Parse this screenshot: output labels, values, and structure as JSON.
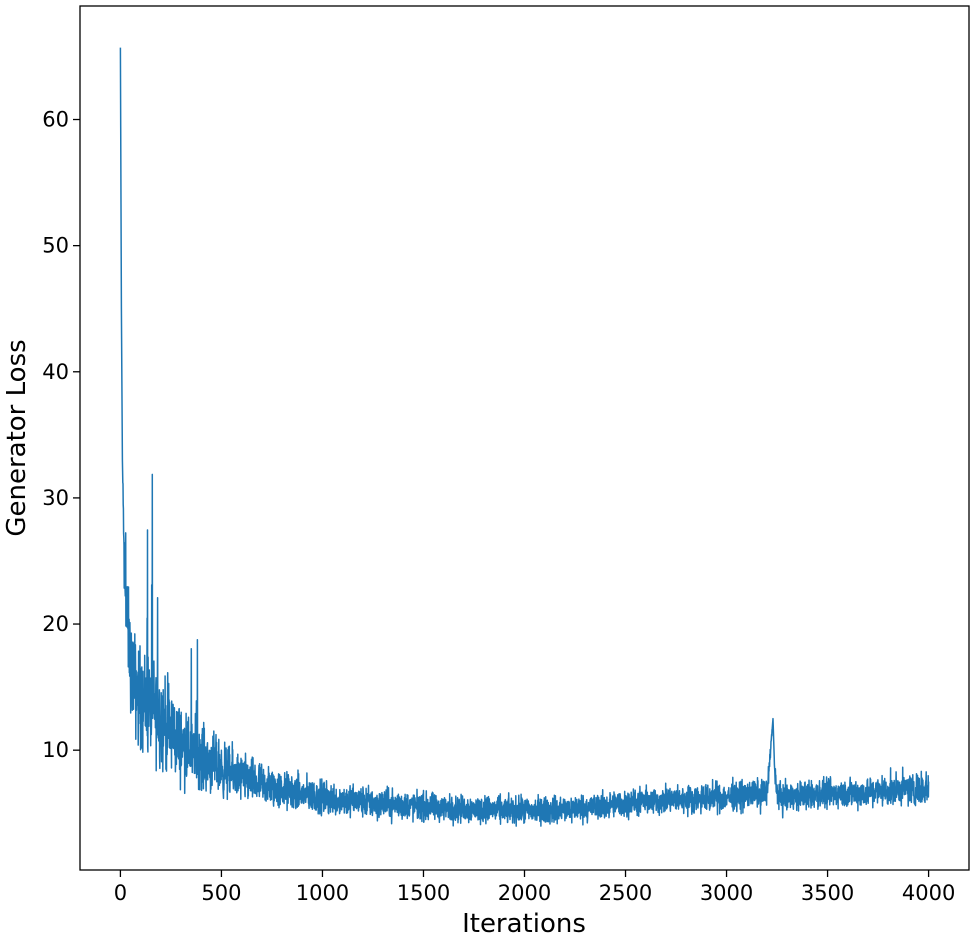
{
  "chart_data": {
    "type": "line",
    "title": "",
    "xlabel": "Iterations",
    "ylabel": "Generator Loss",
    "xlim": [
      -200,
      4200
    ],
    "ylim": [
      0.5,
      69
    ],
    "xticks": [
      0,
      500,
      1000,
      1500,
      2000,
      2500,
      3000,
      3500,
      4000
    ],
    "yticks": [
      10,
      20,
      30,
      40,
      50,
      60
    ],
    "grid": false,
    "legend": "none",
    "line_color": "#1f77b4",
    "series": [
      {
        "x": [
          0,
          5,
          10,
          20,
          30,
          50,
          75,
          100,
          150,
          200,
          250,
          300,
          400,
          500,
          600,
          700,
          800,
          900,
          1000,
          1200,
          1400,
          1600,
          1800,
          2000,
          2200,
          2400,
          2600,
          2800,
          3000,
          3200,
          3230,
          3240,
          3260,
          3400,
          3600,
          3800,
          4000
        ],
        "values": [
          65.7,
          45,
          33,
          24,
          21,
          17,
          15,
          14,
          13.5,
          12.5,
          11.5,
          10.5,
          9.5,
          8.5,
          7.8,
          7.2,
          6.8,
          6.5,
          6.2,
          5.9,
          5.6,
          5.4,
          5.3,
          5.2,
          5.3,
          5.6,
          5.9,
          6.1,
          6.3,
          6.6,
          12.5,
          7.5,
          6.2,
          6.4,
          6.6,
          6.8,
          7.0
        ],
        "spread": [
          0,
          0,
          0,
          4,
          4,
          4,
          4.5,
          4.5,
          4.5,
          4.2,
          3.8,
          3.2,
          2.8,
          2.4,
          2.1,
          1.9,
          1.7,
          1.6,
          1.5,
          1.4,
          1.3,
          1.2,
          1.2,
          1.2,
          1.2,
          1.2,
          1.2,
          1.2,
          1.3,
          1.3,
          0,
          1.3,
          1.3,
          1.3,
          1.3,
          1.4,
          1.4
        ]
      }
    ]
  }
}
